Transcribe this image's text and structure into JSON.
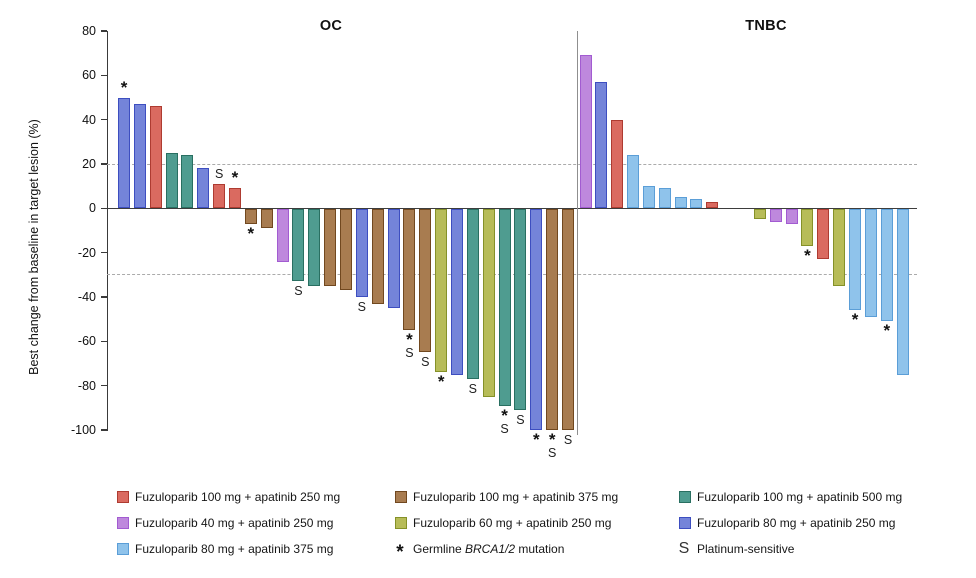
{
  "chart_data": {
    "type": "bar",
    "subtype": "waterfall",
    "ylabel": "Best change from baseline in target lesion (%)",
    "ylim": [
      -100,
      80
    ],
    "yticks": [
      80,
      60,
      40,
      20,
      0,
      -20,
      -40,
      -60,
      -80,
      -100
    ],
    "reference_lines": [
      20,
      -30
    ],
    "grid": false,
    "legend_position": "bottom",
    "marker_meanings": {
      "*": "Germline BRCA1/2 mutation",
      "S": "Platinum-sensitive"
    },
    "dose_groups": {
      "f100a250": {
        "label": "Fuzuloparib 100 mg + apatinib 250 mg",
        "fill": "#DA6A60",
        "border": "#AE3B31"
      },
      "f100a375": {
        "label": "Fuzuloparib 100 mg + apatinib 375 mg",
        "fill": "#A87C50",
        "border": "#71481F"
      },
      "f100a500": {
        "label": "Fuzuloparib 100 mg + apatinib 500 mg",
        "fill": "#4F9C90",
        "border": "#296F61"
      },
      "f40a250": {
        "label": "Fuzuloparib 40 mg + apatinib 250 mg",
        "fill": "#BE88DD",
        "border": "#A25BD1"
      },
      "f60a250": {
        "label": "Fuzuloparib 60 mg + apatinib 250 mg",
        "fill": "#B7BC58",
        "border": "#859128"
      },
      "f80a250": {
        "label": "Fuzuloparib 80 mg + apatinib 250 mg",
        "fill": "#7484D9",
        "border": "#3D4EC0"
      },
      "f80a375": {
        "label": "Fuzuloparib 80 mg + apatinib 375 mg",
        "fill": "#8FC3EB",
        "border": "#5B9ED7"
      }
    },
    "panels": [
      {
        "name": "OC",
        "bars": [
          {
            "value": 50,
            "group": "f80a250",
            "marks": [
              "*"
            ]
          },
          {
            "value": 47,
            "group": "f80a250"
          },
          {
            "value": 46,
            "group": "f100a250"
          },
          {
            "value": 25,
            "group": "f100a500"
          },
          {
            "value": 24,
            "group": "f100a500"
          },
          {
            "value": 18,
            "group": "f80a250"
          },
          {
            "value": 11,
            "group": "f100a250",
            "marks": [
              "S"
            ]
          },
          {
            "value": 9,
            "group": "f100a250",
            "marks": [
              "*"
            ]
          },
          {
            "value": -7,
            "group": "f100a375",
            "marks": [
              "*"
            ]
          },
          {
            "value": -9,
            "group": "f100a375"
          },
          {
            "value": -24,
            "group": "f40a250"
          },
          {
            "value": -33,
            "group": "f100a500",
            "marks": [
              "S"
            ]
          },
          {
            "value": -35,
            "group": "f100a500"
          },
          {
            "value": -35,
            "group": "f100a375"
          },
          {
            "value": -37,
            "group": "f100a375"
          },
          {
            "value": -40,
            "group": "f80a250",
            "marks": [
              "S"
            ]
          },
          {
            "value": -43,
            "group": "f100a375"
          },
          {
            "value": -45,
            "group": "f80a250"
          },
          {
            "value": -55,
            "group": "f100a375",
            "marks": [
              "*",
              "S"
            ]
          },
          {
            "value": -65,
            "group": "f100a375",
            "marks": [
              "S"
            ]
          },
          {
            "value": -74,
            "group": "f60a250",
            "marks": [
              "*"
            ]
          },
          {
            "value": -75,
            "group": "f80a250"
          },
          {
            "value": -77,
            "group": "f100a500",
            "marks": [
              "S"
            ]
          },
          {
            "value": -85,
            "group": "f60a250"
          },
          {
            "value": -89,
            "group": "f100a500",
            "marks": [
              "*",
              "S"
            ]
          },
          {
            "value": -91,
            "group": "f100a500",
            "marks": [
              "S"
            ]
          },
          {
            "value": -100,
            "group": "f80a250",
            "marks": [
              "*"
            ]
          },
          {
            "value": -100,
            "group": "f100a375",
            "marks": [
              "*",
              "S"
            ]
          },
          {
            "value": -100,
            "group": "f100a375",
            "marks": [
              "S"
            ]
          }
        ]
      },
      {
        "name": "TNBC",
        "bars": [
          {
            "value": 69,
            "group": "f40a250"
          },
          {
            "value": 57,
            "group": "f80a250"
          },
          {
            "value": 40,
            "group": "f100a250"
          },
          {
            "value": 24,
            "group": "f80a375"
          },
          {
            "value": 10,
            "group": "f80a375"
          },
          {
            "value": 9,
            "group": "f80a375"
          },
          {
            "value": 5,
            "group": "f80a375"
          },
          {
            "value": 4,
            "group": "f80a375"
          },
          {
            "value": 3,
            "group": "f100a250"
          },
          {
            "value": 0
          },
          {
            "value": 0
          },
          {
            "value": -5,
            "group": "f60a250"
          },
          {
            "value": -6,
            "group": "f40a250"
          },
          {
            "value": -7,
            "group": "f40a250"
          },
          {
            "value": -17,
            "group": "f60a250",
            "marks": [
              "*"
            ]
          },
          {
            "value": -23,
            "group": "f100a250"
          },
          {
            "value": -35,
            "group": "f60a250"
          },
          {
            "value": -46,
            "group": "f80a375",
            "marks": [
              "*"
            ]
          },
          {
            "value": -49,
            "group": "f80a375"
          },
          {
            "value": -51,
            "group": "f80a375",
            "marks": [
              "*"
            ]
          },
          {
            "value": -75,
            "group": "f80a375"
          }
        ]
      }
    ]
  },
  "legend": {
    "columns": [
      [
        {
          "group": "f100a250"
        },
        {
          "group": "f40a250"
        },
        {
          "group": "f80a375"
        }
      ],
      [
        {
          "group": "f100a375"
        },
        {
          "group": "f60a250"
        },
        {
          "symbol": "*",
          "label_parts": [
            "Germline ",
            "BRCA1/2",
            " mutation"
          ]
        }
      ],
      [
        {
          "group": "f100a500"
        },
        {
          "group": "f80a250"
        },
        {
          "symbol": "S",
          "label": "Platinum-sensitive"
        }
      ]
    ]
  }
}
